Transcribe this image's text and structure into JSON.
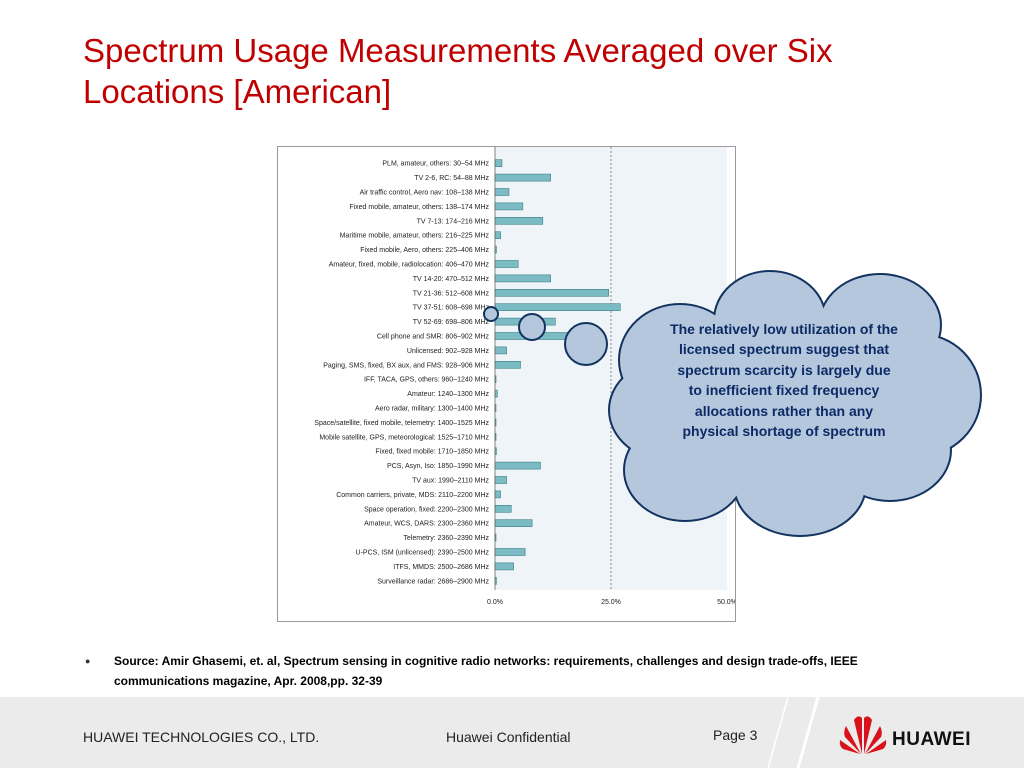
{
  "title": "Spectrum Usage Measurements Averaged over Six Locations [American]",
  "callout": "The relatively low utilization of the licensed spectrum suggest that spectrum scarcity is largely due to inefficient fixed frequency allocations rather than any physical shortage of spectrum",
  "source": "Source: Amir Ghasemi, et. al, Spectrum sensing in cognitive radio networks: requirements, challenges and design trade-offs, IEEE communications magazine, Apr. 2008,pp. 32-39",
  "footer": {
    "company": "HUAWEI TECHNOLOGIES CO., LTD.",
    "confidential": "Huawei Confidential",
    "page": "Page 3",
    "logo_text": "HUAWEI"
  },
  "colors": {
    "title": "#c00000",
    "bar": "#7bbcc4",
    "bar_border": "#3f7f88",
    "plot_bg": "#eef4f8",
    "cloud_fill": "#b5c7dc",
    "cloud_stroke": "#12335f"
  },
  "chart_data": {
    "type": "bar",
    "orientation": "horizontal",
    "categories": [
      "PLM, amateur, others: 30–54 MHz",
      "TV 2-6, RC: 54–88 MHz",
      "Air traffic control, Aero nav: 108–138 MHz",
      "Fixed mobile, amateur, others: 138–174 MHz",
      "TV 7-13: 174–216 MHz",
      "Maritime mobile, amateur, others: 216–225 MHz",
      "Fixed mobile, Aero, others: 225–406 MHz",
      "Amateur, fixed, mobile, radiolocation: 406–470 MHz",
      "TV 14-20: 470–512 MHz",
      "TV 21-36: 512–608 MHz",
      "TV 37-51: 608–698 MHz",
      "TV 52-69: 698–806 MHz",
      "Cell phone and SMR: 806–902 MHz",
      "Unlicensed: 902–928 MHz",
      "Paging, SMS, fixed, BX aux, and FMS: 928–906 MHz",
      "IFF, TACA, GPS, others: 960–1240 MHz",
      "Amateur: 1240–1300 MHz",
      "Aero radar, military: 1300–1400 MHz",
      "Space/satellite, fixed mobile, telemetry: 1400–1525 MHz",
      "Mobile satellite, GPS, meteorological: 1525–1710 MHz",
      "Fixed, fixed mobile: 1710–1850 MHz",
      "PCS, Asyn, Iso: 1850–1990 MHz",
      "TV aux: 1990–2110 MHz",
      "Common carriers, private, MDS: 2110–2200 MHz",
      "Space operation, fixed: 2200–2300 MHz",
      "Amateur, WCS, DARS: 2300–2360 MHz",
      "Telemetry: 2360–2390 MHz",
      "U-PCS, ISM (unlicensed): 2390–2500 MHz",
      "ITFS, MMDS: 2500–2686 MHz",
      "Surveillance radar: 2686–2900 MHz"
    ],
    "values": [
      1.5,
      12,
      3,
      6,
      10.3,
      1.2,
      0.3,
      5,
      12,
      24.5,
      27,
      13,
      16,
      2.5,
      5.5,
      0.2,
      0.5,
      0.2,
      0.2,
      0.2,
      0.3,
      9.8,
      2.5,
      1.2,
      3.5,
      8,
      0.2,
      6.5,
      4,
      0.3
    ],
    "xlim": [
      0,
      50
    ],
    "xticks": [
      "0.0%",
      "25.0%",
      "50.0%"
    ],
    "reference_line": 25,
    "grid": false
  }
}
